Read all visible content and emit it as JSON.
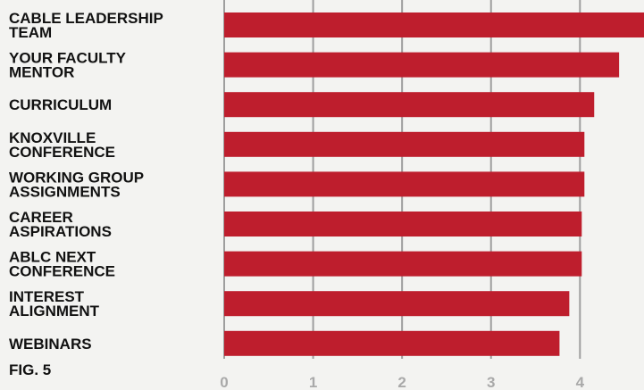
{
  "chart_data": {
    "type": "bar",
    "orientation": "horizontal",
    "figure_label": "FIG. 5",
    "categories": [
      [
        "CABLE LEADERSHIP",
        "TEAM"
      ],
      [
        "YOUR FACULTY",
        "MENTOR"
      ],
      [
        "CURRICULUM"
      ],
      [
        "KNOXVILLE",
        "CONFERENCE"
      ],
      [
        "WORKING GROUP",
        "ASSIGNMENTS"
      ],
      [
        "CAREER",
        "ASPIRATIONS"
      ],
      [
        "ABLC NEXT",
        "CONFERENCE"
      ],
      [
        "INTEREST",
        "ALIGNMENT"
      ],
      [
        "WEBINARS"
      ]
    ],
    "values": [
      4.72,
      4.44,
      4.16,
      4.05,
      4.05,
      4.02,
      4.02,
      3.88,
      3.77
    ],
    "xlim": [
      0,
      4.72
    ],
    "xticks": [
      "0",
      "1",
      "2",
      "3",
      "4"
    ],
    "grid": true,
    "bar_color": "#be1e2d",
    "grid_color": "#9e9e9e",
    "tick_color": "#a9a9a9",
    "title": "",
    "xlabel": "",
    "ylabel": ""
  }
}
